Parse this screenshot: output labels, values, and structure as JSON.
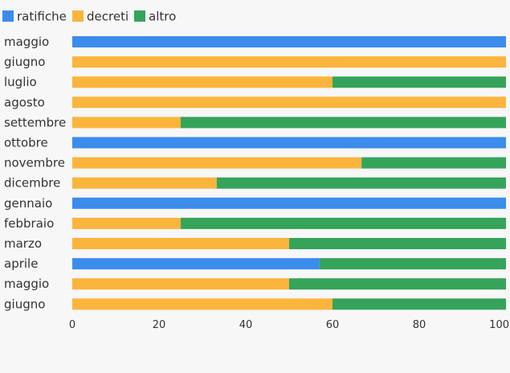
{
  "chart_data": {
    "type": "bar",
    "orientation": "horizontal",
    "stacked": true,
    "categories": [
      "maggio",
      "giugno",
      "luglio",
      "agosto",
      "settembre",
      "ottobre",
      "novembre",
      "dicembre",
      "gennaio",
      "febbraio",
      "marzo",
      "aprile",
      "maggio",
      "giugno"
    ],
    "series": [
      {
        "name": "ratifiche",
        "color": "#3b8ced",
        "values": [
          100,
          0,
          0,
          0,
          0,
          100,
          0,
          0,
          100,
          0,
          0,
          57,
          0,
          0
        ]
      },
      {
        "name": "decreti",
        "color": "#fbb43c",
        "values": [
          0,
          100,
          60,
          100,
          25,
          0,
          66.7,
          33.3,
          0,
          25,
          50,
          0,
          50,
          60
        ]
      },
      {
        "name": "altro",
        "color": "#35a45a",
        "values": [
          0,
          0,
          40,
          0,
          75,
          0,
          33.3,
          66.7,
          0,
          75,
          50,
          43,
          50,
          40
        ]
      }
    ],
    "xlim": [
      0,
      100
    ],
    "xticks": [
      "0",
      "20",
      "40",
      "60",
      "80",
      "100"
    ],
    "legend_position": "top-left",
    "grid": false
  }
}
